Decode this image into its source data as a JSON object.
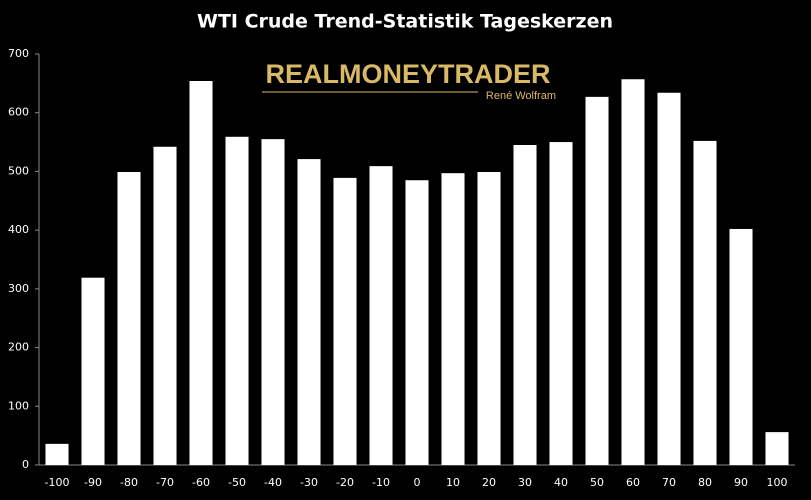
{
  "chart_data": {
    "type": "bar",
    "title": "WTI Crude Trend-Statistik Tageskerzen",
    "watermark": {
      "title": "REALMONEYTRADER",
      "subtitle": "René Wolfram"
    },
    "categories": [
      "-100",
      "-90",
      "-80",
      "-70",
      "-60",
      "-50",
      "-40",
      "-30",
      "-20",
      "-10",
      "0",
      "10",
      "20",
      "30",
      "40",
      "50",
      "60",
      "70",
      "80",
      "90",
      "100"
    ],
    "values": [
      36,
      319,
      499,
      542,
      654,
      559,
      555,
      521,
      489,
      509,
      485,
      497,
      499,
      545,
      550,
      627,
      657,
      634,
      552,
      402,
      56
    ],
    "color": "#ffffff",
    "ylim": [
      0,
      700
    ],
    "yticks": [
      0,
      100,
      200,
      300,
      400,
      500,
      600,
      700
    ],
    "grid": false
  }
}
